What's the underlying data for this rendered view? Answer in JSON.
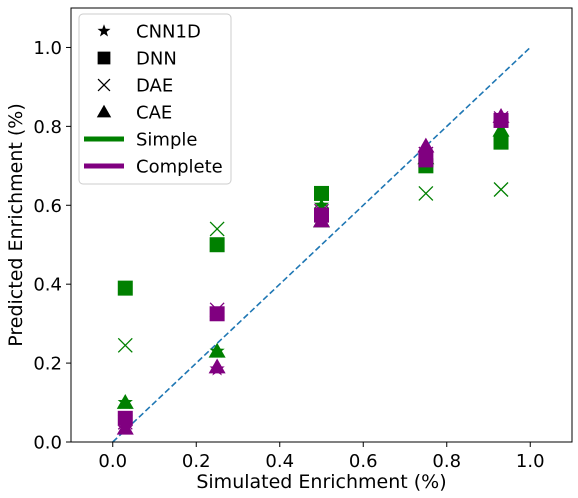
{
  "chart_data": {
    "type": "scatter",
    "title": "",
    "xlabel": "Simulated Enrichment (%)",
    "ylabel": "Predicted Enrichment (%)",
    "xlim": [
      -0.1,
      1.1
    ],
    "ylim": [
      0.0,
      1.1
    ],
    "xticks": [
      "0.0",
      "0.2",
      "0.4",
      "0.6",
      "0.8",
      "1.0"
    ],
    "yticks": [
      "0.0",
      "0.2",
      "0.4",
      "0.6",
      "0.8",
      "1.0"
    ],
    "xtick_values": [
      0.0,
      0.2,
      0.4,
      0.6,
      0.8,
      1.0
    ],
    "ytick_values": [
      0.0,
      0.2,
      0.4,
      0.6,
      0.8,
      1.0
    ],
    "grid": false,
    "legend_position": "top-left",
    "reference_line": {
      "style": "dashed",
      "color": "#1f77b4",
      "from": [
        0.0,
        0.0
      ],
      "to": [
        1.0,
        1.0
      ]
    },
    "legend": [
      {
        "label": "CNN1D",
        "kind": "marker",
        "marker": "star"
      },
      {
        "label": "DNN",
        "kind": "marker",
        "marker": "square"
      },
      {
        "label": "DAE",
        "kind": "marker",
        "marker": "x"
      },
      {
        "label": "CAE",
        "kind": "marker",
        "marker": "triangle"
      },
      {
        "label": "Simple",
        "kind": "line",
        "color": "#008000"
      },
      {
        "label": "Complete",
        "kind": "line",
        "color": "#800080"
      }
    ],
    "colors": {
      "Simple": "#008000",
      "Complete": "#800080"
    },
    "series": [
      {
        "model": "CNN1D",
        "dataset": "Simple",
        "marker": "star",
        "x": [
          0.03,
          0.25,
          0.5,
          0.75,
          0.93
        ],
        "y": [
          0.1,
          0.23,
          0.6,
          0.73,
          0.8
        ]
      },
      {
        "model": "DNN",
        "dataset": "Simple",
        "marker": "square",
        "x": [
          0.03,
          0.25,
          0.5,
          0.75,
          0.93
        ],
        "y": [
          0.39,
          0.5,
          0.63,
          0.7,
          0.76
        ]
      },
      {
        "model": "DAE",
        "dataset": "Simple",
        "marker": "x",
        "x": [
          0.03,
          0.25,
          0.5,
          0.75,
          0.93
        ],
        "y": [
          0.245,
          0.54,
          0.61,
          0.63,
          0.64
        ]
      },
      {
        "model": "CAE",
        "dataset": "Simple",
        "marker": "triangle",
        "x": [
          0.03,
          0.25,
          0.5,
          0.75,
          0.93
        ],
        "y": [
          0.1,
          0.23,
          0.56,
          0.72,
          0.79
        ]
      },
      {
        "model": "CNN1D",
        "dataset": "Complete",
        "marker": "star",
        "x": [
          0.03,
          0.25,
          0.5,
          0.75,
          0.93
        ],
        "y": [
          0.035,
          0.185,
          0.56,
          0.74,
          0.82
        ]
      },
      {
        "model": "DNN",
        "dataset": "Complete",
        "marker": "square",
        "x": [
          0.03,
          0.25,
          0.5,
          0.75,
          0.93
        ],
        "y": [
          0.06,
          0.325,
          0.575,
          0.715,
          0.815
        ]
      },
      {
        "model": "DAE",
        "dataset": "Complete",
        "marker": "x",
        "x": [
          0.03,
          0.25,
          0.5,
          0.75,
          0.93
        ],
        "y": [
          0.05,
          0.335,
          0.585,
          0.73,
          0.82
        ]
      },
      {
        "model": "CAE",
        "dataset": "Complete",
        "marker": "triangle",
        "x": [
          0.03,
          0.25,
          0.5,
          0.75,
          0.93
        ],
        "y": [
          0.035,
          0.19,
          0.56,
          0.75,
          0.825
        ]
      }
    ]
  }
}
